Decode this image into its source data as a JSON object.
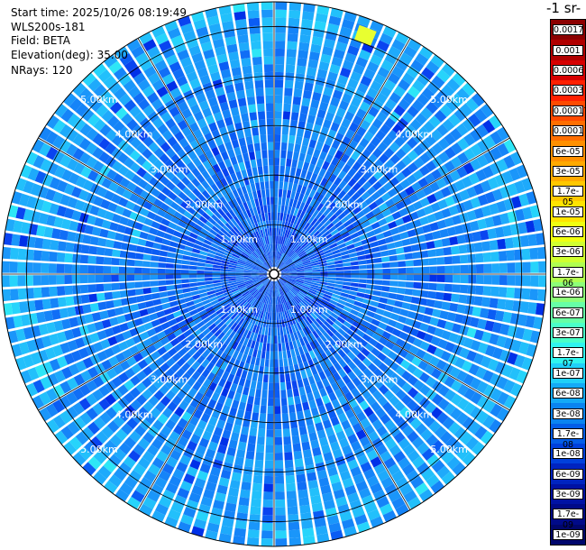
{
  "header": {
    "start_time": "Start time: 2025/10/26 08:19:49",
    "instrument": "WLS200s-181",
    "field": "Field: BETA",
    "elevation": "Elevation(deg): 35.00",
    "nrays": "NRays: 120"
  },
  "colorbar": {
    "title": "-1 sr-",
    "labels": [
      "0.0017",
      "0.001",
      "0.0006",
      "0.0003",
      "0.00017",
      "0.0001",
      "6e-05",
      "3e-05",
      "1.7e-05",
      "1e-05",
      "6e-06",
      "3e-06",
      "1.7e-06",
      "1e-06",
      "6e-07",
      "3e-07",
      "1.7e-07",
      "1e-07",
      "6e-08",
      "3e-08",
      "1.7e-08",
      "1e-08",
      "6e-09",
      "3e-09",
      "1.7e-09",
      "1e-09"
    ],
    "colors": [
      "#8b0000",
      "#b00000",
      "#d60000",
      "#ff2000",
      "#ff4a00",
      "#ff6e00",
      "#ff9000",
      "#ffaa00",
      "#ffc800",
      "#ffe400",
      "#f0ff10",
      "#d0ff30",
      "#b0ff50",
      "#8cff78",
      "#66ffa6",
      "#4affc8",
      "#30f4ee",
      "#20d0f8",
      "#14aaf6",
      "#0a84f0",
      "#045ee8",
      "#0040dc",
      "#0024c0",
      "#0012a4",
      "#000a88",
      "#00066c"
    ]
  },
  "chart_data": {
    "type": "polar-ppi",
    "field": "BETA",
    "elevation_deg": 35.0,
    "n_rays": 120,
    "max_range_km": 5.5,
    "range_rings_km": [
      1.0,
      2.0,
      3.0,
      4.0,
      5.0
    ],
    "ring_labels": [
      "1.00km",
      "2.00km",
      "3.00km",
      "4.00km",
      "5.00km"
    ],
    "radial_lines_deg": [
      0,
      30,
      60,
      90,
      120,
      150
    ],
    "value_scale": "log",
    "value_range": [
      1e-09,
      0.0017
    ],
    "dominant_value_range": [
      1e-08,
      1.7e-07
    ]
  }
}
